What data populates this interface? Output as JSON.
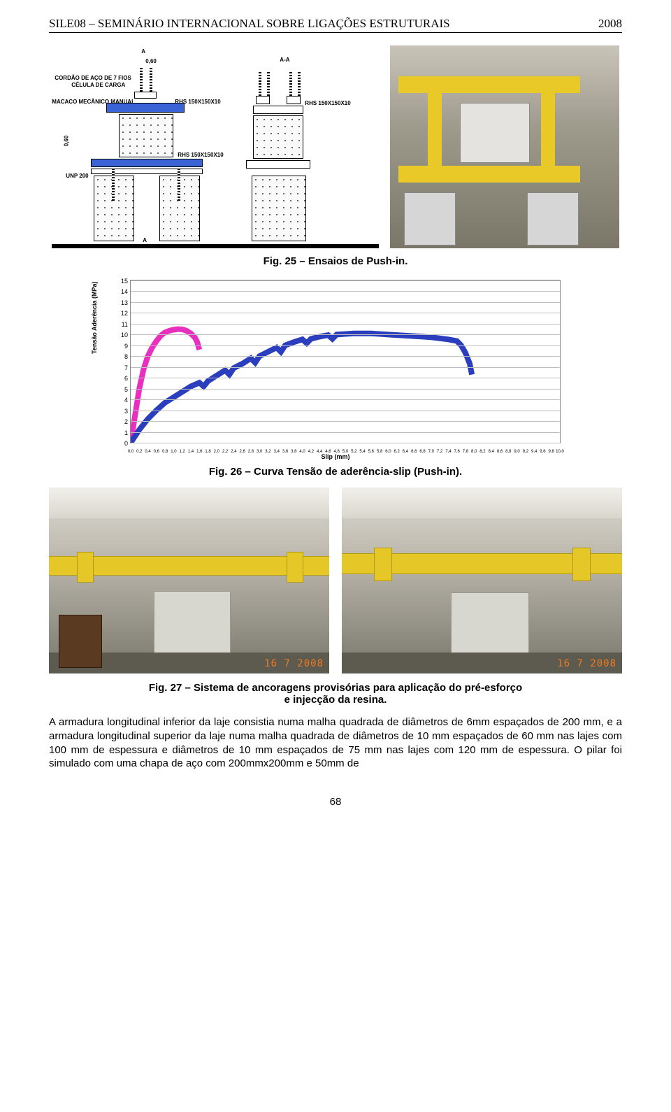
{
  "header": {
    "title": "SILE08 – SEMINÁRIO INTERNACIONAL SOBRE LIGAÇÕES ESTRUTURAIS",
    "year": "2008"
  },
  "diagram": {
    "labels": {
      "section_a": "A",
      "section_aa": "A-A",
      "dim_width": "0,60",
      "dim_height": "0,60",
      "cable": "CORDÃO DE AÇO DE 7 FIOS",
      "loadcell": "CÉLULA DE CARGA",
      "jack": "MACACO MECÂNICO MANUAL",
      "rhs1": "RHS 150X150X10",
      "rhs2": "RHS 150X150X10",
      "rhs3": "RHS 150X150X10",
      "unp": "UNP 200"
    }
  },
  "fig25_caption": "Fig. 25 – Ensaios de Push-in.",
  "chart": {
    "type": "line",
    "title_y": "Tensão Aderência (MPa)",
    "title_x": "Slip (mm)",
    "ylim": [
      0,
      15
    ],
    "ytick_step": 1,
    "xlim": [
      0,
      10
    ],
    "xtick_step": 0.2,
    "grid_color": "#bfbfbf",
    "background_color": "#ffffff",
    "series": [
      {
        "name": "pink",
        "color": "#e82fbd",
        "width": 2,
        "points": [
          [
            0.0,
            0.0
          ],
          [
            0.1,
            2.5
          ],
          [
            0.2,
            5.0
          ],
          [
            0.3,
            6.8
          ],
          [
            0.4,
            8.0
          ],
          [
            0.5,
            8.8
          ],
          [
            0.6,
            9.4
          ],
          [
            0.7,
            9.9
          ],
          [
            0.8,
            10.2
          ],
          [
            0.9,
            10.35
          ],
          [
            1.0,
            10.45
          ],
          [
            1.1,
            10.5
          ],
          [
            1.2,
            10.48
          ],
          [
            1.3,
            10.35
          ],
          [
            1.4,
            10.1
          ],
          [
            1.5,
            9.7
          ],
          [
            1.55,
            9.3
          ],
          [
            1.6,
            8.6
          ]
        ]
      },
      {
        "name": "blue",
        "color": "#2b3fbe",
        "width": 2,
        "points": [
          [
            0.0,
            0.0
          ],
          [
            0.2,
            1.2
          ],
          [
            0.4,
            2.2
          ],
          [
            0.6,
            3.0
          ],
          [
            0.8,
            3.7
          ],
          [
            1.0,
            4.2
          ],
          [
            1.2,
            4.7
          ],
          [
            1.4,
            5.2
          ],
          [
            1.6,
            5.55
          ],
          [
            1.7,
            5.2
          ],
          [
            1.8,
            5.7
          ],
          [
            2.0,
            6.2
          ],
          [
            2.2,
            6.7
          ],
          [
            2.3,
            6.3
          ],
          [
            2.4,
            6.9
          ],
          [
            2.6,
            7.3
          ],
          [
            2.8,
            7.8
          ],
          [
            2.9,
            7.4
          ],
          [
            3.0,
            8.0
          ],
          [
            3.2,
            8.4
          ],
          [
            3.4,
            8.8
          ],
          [
            3.5,
            8.4
          ],
          [
            3.6,
            9.0
          ],
          [
            3.8,
            9.3
          ],
          [
            4.0,
            9.55
          ],
          [
            4.1,
            9.2
          ],
          [
            4.2,
            9.6
          ],
          [
            4.4,
            9.8
          ],
          [
            4.6,
            9.95
          ],
          [
            4.7,
            9.6
          ],
          [
            4.8,
            10.0
          ],
          [
            5.0,
            10.05
          ],
          [
            5.2,
            10.1
          ],
          [
            5.4,
            10.1
          ],
          [
            5.6,
            10.1
          ],
          [
            5.8,
            10.05
          ],
          [
            6.0,
            10.0
          ],
          [
            6.2,
            9.95
          ],
          [
            6.4,
            9.9
          ],
          [
            6.6,
            9.85
          ],
          [
            6.8,
            9.8
          ],
          [
            7.0,
            9.75
          ],
          [
            7.2,
            9.65
          ],
          [
            7.4,
            9.55
          ],
          [
            7.6,
            9.4
          ],
          [
            7.7,
            9.0
          ],
          [
            7.8,
            8.3
          ],
          [
            7.9,
            7.3
          ],
          [
            7.95,
            6.3
          ]
        ]
      }
    ]
  },
  "fig26_caption": "Fig. 26 – Curva Tensão de aderência-slip (Push-in).",
  "photos": {
    "left_date": "16   7 2008",
    "right_date": "16   7 2008"
  },
  "fig27_caption_line1": "Fig. 27 – Sistema de ancoragens provisórias para aplicação do pré-esforço",
  "fig27_caption_line2": "e injecção da resina.",
  "paragraph": "A armadura longitudinal inferior da laje consistia numa malha quadrada de diâmetros de 6mm espaçados de 200 mm, e a armadura longitudinal superior da laje numa malha quadrada de diâmetros de 10 mm espaçados de 60 mm nas lajes com 100 mm de espessura e diâmetros de 10 mm espaçados de 75 mm nas lajes com 120 mm de espessura. O pilar foi simulado com uma chapa de aço com 200mmx200mm e 50mm de",
  "page_number": "68"
}
